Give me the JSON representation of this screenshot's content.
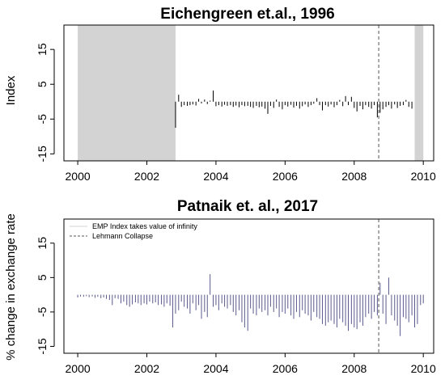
{
  "chart_data": [
    {
      "type": "bar",
      "title": "Eichengreen et.al., 1996",
      "xlabel": "",
      "ylabel": "Index",
      "xlim": [
        1999.6,
        2010.3
      ],
      "ylim": [
        -17,
        22
      ],
      "yticks": [
        -15,
        -5,
        5,
        15
      ],
      "xticks": [
        2000,
        2002,
        2004,
        2006,
        2008,
        2010
      ],
      "bar_color": "#000000",
      "shaded_regions": [
        [
          2000.0,
          2002.83
        ],
        [
          2009.75,
          2010.0
        ]
      ],
      "shade_color": "#d3d3d3",
      "vline": 2008.71,
      "series": [
        {
          "x": [
            2002.83,
            2002.92,
            2003.0,
            2003.08,
            2003.17,
            2003.25,
            2003.33,
            2003.42,
            2003.5,
            2003.58,
            2003.67,
            2003.75,
            2003.83,
            2003.92,
            2004.0,
            2004.08,
            2004.17,
            2004.25,
            2004.33,
            2004.42,
            2004.5,
            2004.58,
            2004.67,
            2004.75,
            2004.83,
            2004.92,
            2005.0,
            2005.08,
            2005.17,
            2005.25,
            2005.33,
            2005.42,
            2005.5,
            2005.58,
            2005.67,
            2005.75,
            2005.83,
            2005.92,
            2006.0,
            2006.08,
            2006.17,
            2006.25,
            2006.33,
            2006.42,
            2006.5,
            2006.58,
            2006.67,
            2006.75,
            2006.83,
            2006.92,
            2007.0,
            2007.08,
            2007.17,
            2007.25,
            2007.33,
            2007.42,
            2007.5,
            2007.58,
            2007.67,
            2007.75,
            2007.83,
            2007.92,
            2008.0,
            2008.08,
            2008.17,
            2008.25,
            2008.33,
            2008.42,
            2008.5,
            2008.58,
            2008.67,
            2008.75,
            2008.83,
            2008.92,
            2009.0,
            2009.08,
            2009.17,
            2009.25,
            2009.33,
            2009.42,
            2009.5,
            2009.58,
            2009.67
          ],
          "values": [
            -7.5,
            2.0,
            -1.5,
            -1.0,
            -1.2,
            -1.0,
            -0.8,
            -1.1,
            0.8,
            -0.5,
            0.6,
            -0.7,
            0.3,
            3.2,
            -1.3,
            -1.0,
            -1.4,
            -0.9,
            -1.2,
            -1.0,
            -1.5,
            -1.1,
            -1.6,
            -1.0,
            -1.3,
            -1.2,
            -1.5,
            -1.8,
            -1.2,
            -1.6,
            -1.4,
            -2.0,
            -3.5,
            -1.2,
            -1.8,
            0.6,
            -1.5,
            -2.2,
            -1.0,
            -1.4,
            -0.9,
            -1.7,
            -1.2,
            -2.0,
            -1.3,
            -0.8,
            -1.5,
            -1.0,
            -0.6,
            1.0,
            -1.0,
            -2.5,
            -1.0,
            -1.4,
            -0.8,
            -1.6,
            -1.0,
            0.5,
            -1.3,
            1.6,
            -1.0,
            1.4,
            -1.8,
            -2.8,
            -1.2,
            -2.2,
            -1.0,
            -1.5,
            -2.0,
            -1.0,
            -4.5,
            -3.2,
            -2.2,
            -1.5,
            -1.0,
            -2.0,
            -0.8,
            -1.8,
            -1.2,
            -1.0,
            0.5,
            -1.5,
            -2.0
          ]
        }
      ]
    },
    {
      "type": "bar",
      "title": "Patnaik et. al., 2017",
      "xlabel": "",
      "ylabel": "% change in exchange rate",
      "xlim": [
        1999.6,
        2010.3
      ],
      "ylim": [
        -17,
        22
      ],
      "yticks": [
        -15,
        -5,
        5,
        15
      ],
      "xticks": [
        2000,
        2002,
        2004,
        2006,
        2008,
        2010
      ],
      "bar_color": "#5a5a8c",
      "vline": 2008.71,
      "legend": {
        "position": "top-left",
        "entries": [
          {
            "label": "EMP Index takes value of infinity",
            "style": "solid",
            "color": "#d3d3d3"
          },
          {
            "label": "Lehmann Collapse",
            "style": "dashed",
            "color": "#555555"
          }
        ]
      },
      "series": [
        {
          "x": [
            2000.0,
            2000.08,
            2000.17,
            2000.25,
            2000.33,
            2000.42,
            2000.5,
            2000.58,
            2000.67,
            2000.75,
            2000.83,
            2000.92,
            2001.0,
            2001.08,
            2001.17,
            2001.25,
            2001.33,
            2001.42,
            2001.5,
            2001.58,
            2001.67,
            2001.75,
            2001.83,
            2001.92,
            2002.0,
            2002.08,
            2002.17,
            2002.25,
            2002.33,
            2002.42,
            2002.5,
            2002.58,
            2002.67,
            2002.75,
            2002.83,
            2002.92,
            2003.0,
            2003.08,
            2003.17,
            2003.25,
            2003.33,
            2003.42,
            2003.5,
            2003.58,
            2003.67,
            2003.75,
            2003.83,
            2003.92,
            2004.0,
            2004.08,
            2004.17,
            2004.25,
            2004.33,
            2004.42,
            2004.5,
            2004.58,
            2004.67,
            2004.75,
            2004.83,
            2004.92,
            2005.0,
            2005.08,
            2005.17,
            2005.25,
            2005.33,
            2005.42,
            2005.5,
            2005.58,
            2005.67,
            2005.75,
            2005.83,
            2005.92,
            2006.0,
            2006.08,
            2006.17,
            2006.25,
            2006.33,
            2006.42,
            2006.5,
            2006.58,
            2006.67,
            2006.75,
            2006.83,
            2006.92,
            2007.0,
            2007.08,
            2007.17,
            2007.25,
            2007.33,
            2007.42,
            2007.5,
            2007.58,
            2007.67,
            2007.75,
            2007.83,
            2007.92,
            2008.0,
            2008.08,
            2008.17,
            2008.25,
            2008.33,
            2008.42,
            2008.5,
            2008.58,
            2008.67,
            2008.75,
            2008.83,
            2008.92,
            2009.0,
            2009.08,
            2009.17,
            2009.25,
            2009.33,
            2009.42,
            2009.5,
            2009.58,
            2009.67,
            2009.75,
            2009.83,
            2009.92,
            2010.0
          ],
          "values": [
            -0.8,
            -0.5,
            -0.6,
            -0.4,
            -0.7,
            -0.5,
            -0.9,
            -0.6,
            -1.0,
            -0.8,
            -1.2,
            -1.5,
            -3.0,
            -1.0,
            -1.2,
            -2.5,
            -2.0,
            -3.0,
            -3.5,
            -2.8,
            -2.2,
            -2.5,
            -3.0,
            -2.5,
            -2.8,
            -2.0,
            -2.5,
            -2.2,
            -3.0,
            -2.8,
            -3.5,
            -2.5,
            -3.2,
            -9.5,
            -5.5,
            -4.5,
            -2.0,
            -3.5,
            -4.0,
            -5.5,
            -2.5,
            -4.5,
            -3.0,
            -7.0,
            -5.0,
            -6.5,
            6.0,
            -3.5,
            -3.0,
            -4.5,
            -2.5,
            -3.5,
            -4.0,
            -3.0,
            -5.0,
            -6.0,
            -4.5,
            -8.0,
            -9.5,
            -10.5,
            -4.0,
            -5.5,
            -6.0,
            -4.0,
            -5.0,
            -4.5,
            -6.0,
            -3.5,
            -5.0,
            -4.0,
            -6.5,
            -5.0,
            -5.5,
            -4.0,
            -6.0,
            -7.0,
            -5.0,
            -6.5,
            -4.5,
            -5.5,
            -6.0,
            -7.5,
            -5.0,
            -6.5,
            -7.0,
            -8.5,
            -9.0,
            -8.0,
            -7.5,
            -8.5,
            -9.5,
            -7.0,
            -8.0,
            -9.0,
            -10.5,
            -8.5,
            -9.5,
            -10.0,
            -8.0,
            -9.0,
            -6.5,
            -5.5,
            -7.0,
            -5.0,
            -6.0,
            3.5,
            -5.5,
            -8.5,
            5.0,
            -6.0,
            -7.5,
            -9.0,
            -12.0,
            -6.5,
            -7.0,
            -8.0,
            -6.0,
            -9.5,
            -8.5,
            -3.0,
            -2.5
          ]
        }
      ]
    }
  ]
}
